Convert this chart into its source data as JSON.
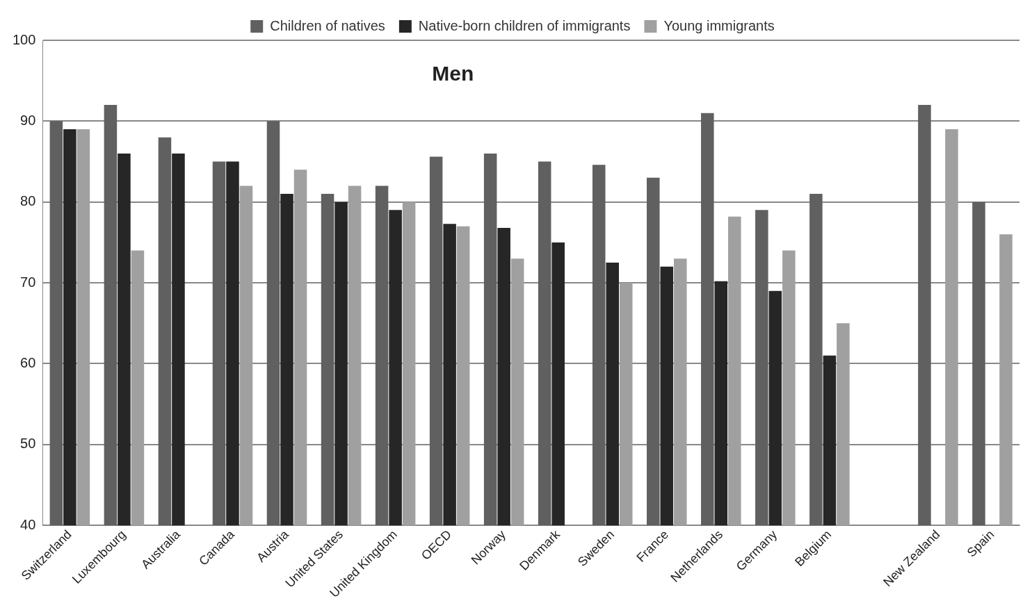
{
  "chart_data": {
    "type": "bar",
    "title": "Men",
    "categories": [
      "Switzerland",
      "Luxembourg",
      "Australia",
      "Canada",
      "Austria",
      "United States",
      "United Kingdom",
      "OECD",
      "Norway",
      "Denmark",
      "Sweden",
      "France",
      "Netherlands",
      "Germany",
      "Belgium",
      null,
      "New Zealand",
      "Spain"
    ],
    "series": [
      {
        "name": "Children of natives",
        "color": "#606060",
        "values": [
          90,
          92,
          88,
          85,
          90,
          81,
          82,
          85.6,
          86,
          85,
          84.6,
          83,
          91,
          79,
          81,
          null,
          92,
          80
        ]
      },
      {
        "name": "Native-born children of immigrants",
        "color": "#262626",
        "values": [
          89,
          86,
          86,
          85,
          81,
          80,
          79,
          77.3,
          76.8,
          75,
          72.5,
          72,
          70.2,
          69,
          61,
          null,
          null,
          null
        ]
      },
      {
        "name": "Young immigrants",
        "color": "#a0a0a0",
        "values": [
          89,
          74,
          null,
          82,
          84,
          82,
          80,
          77,
          73,
          null,
          70,
          73,
          78.2,
          74,
          65,
          null,
          89,
          76
        ]
      }
    ],
    "ylim": [
      40,
      100
    ],
    "yticks": [
      40,
      50,
      60,
      70,
      80,
      90,
      100
    ],
    "grid": "y",
    "legend": "top"
  }
}
